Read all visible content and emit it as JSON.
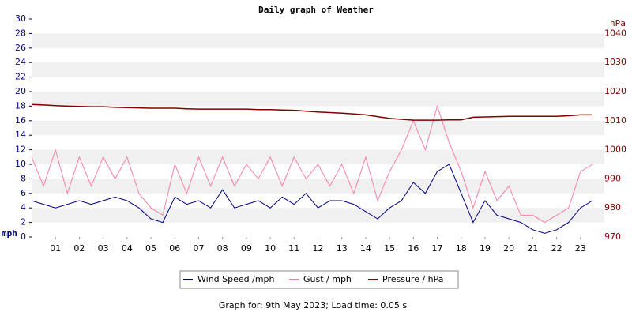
{
  "chart_data": {
    "type": "line",
    "title": "Daily graph of Weather",
    "y_label": "mph",
    "y2_label": "hPa",
    "footer": "Graph for: 9th May 2023; Load time: 0.05 s",
    "legend": "bottom",
    "grid": true,
    "x": [
      0,
      0.5,
      1,
      1.5,
      2,
      2.5,
      3,
      3.5,
      4,
      4.5,
      5,
      5.5,
      6,
      6.5,
      7,
      7.5,
      8,
      8.5,
      9,
      9.5,
      10,
      10.5,
      11,
      11.5,
      12,
      12.5,
      13,
      13.5,
      14,
      14.5,
      15,
      15.5,
      16,
      16.5,
      17,
      17.5,
      18,
      18.5,
      19,
      19.5,
      20,
      20.5,
      21,
      21.5,
      22,
      22.5,
      23,
      23.5
    ],
    "xlim": [
      0,
      24
    ],
    "xticks": [
      {
        "value": 1,
        "label": "01"
      },
      {
        "value": 2,
        "label": "02"
      },
      {
        "value": 3,
        "label": "03"
      },
      {
        "value": 4,
        "label": "04"
      },
      {
        "value": 5,
        "label": "05"
      },
      {
        "value": 6,
        "label": "06"
      },
      {
        "value": 7,
        "label": "07"
      },
      {
        "value": 8,
        "label": "08"
      },
      {
        "value": 9,
        "label": "09"
      },
      10,
      11,
      12,
      13,
      14,
      15,
      16,
      17,
      18,
      19,
      20,
      21,
      22,
      23
    ],
    "ylim": [
      0,
      30
    ],
    "yticks": [
      0,
      2,
      4,
      6,
      8,
      10,
      12,
      14,
      16,
      18,
      20,
      22,
      24,
      26,
      28,
      30
    ],
    "y2lim": [
      970,
      1045
    ],
    "y2ticks": [
      970,
      980,
      990,
      1000,
      1010,
      1020,
      1030,
      1040
    ],
    "series": [
      {
        "name": "Wind Speed /mph",
        "color": "#000080",
        "values": [
          5,
          4.5,
          4,
          4.5,
          5,
          4.5,
          5,
          5.5,
          5,
          4,
          2.5,
          2,
          5.5,
          4.5,
          5,
          4,
          6.5,
          4,
          4.5,
          5,
          4,
          5.5,
          4.5,
          6,
          4,
          5,
          5,
          4.5,
          3.5,
          2.5,
          4,
          5,
          7.5,
          6,
          9,
          10,
          6,
          2,
          5,
          3,
          2.5,
          2,
          1,
          0.5,
          1,
          2,
          4,
          5
        ]
      },
      {
        "name": "Gust / mph",
        "color": "#f77fa6",
        "values": [
          11,
          7,
          12,
          6,
          11,
          7,
          11,
          8,
          11,
          6,
          4,
          3,
          10,
          6,
          11,
          7,
          11,
          7,
          10,
          8,
          11,
          7,
          11,
          8,
          10,
          7,
          10,
          6,
          11,
          5,
          9,
          12,
          16,
          12,
          18,
          13,
          9,
          4,
          9,
          5,
          7,
          3,
          3,
          2,
          3,
          4,
          9,
          10
        ]
      },
      {
        "name": "Pressure / hPa",
        "color": "#800000",
        "axis": "y2",
        "values": [
          1015.6,
          1015.4,
          1015.2,
          1015,
          1014.9,
          1014.8,
          1014.8,
          1014.6,
          1014.5,
          1014.4,
          1014.3,
          1014.3,
          1014.3,
          1014.1,
          1014,
          1014,
          1014,
          1014,
          1014,
          1013.8,
          1013.8,
          1013.7,
          1013.6,
          1013.3,
          1013,
          1012.8,
          1012.6,
          1012.3,
          1012,
          1011.4,
          1010.8,
          1010.5,
          1010.2,
          1010.2,
          1010.2,
          1010.3,
          1010.3,
          1011.2,
          1011.3,
          1011.4,
          1011.5,
          1011.5,
          1011.5,
          1011.5,
          1011.5,
          1011.7,
          1012,
          1012
        ]
      }
    ]
  }
}
